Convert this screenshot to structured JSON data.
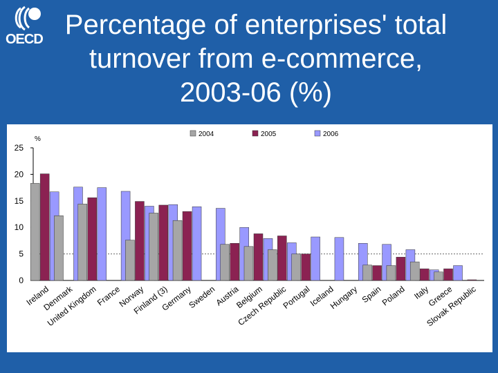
{
  "logo": {
    "text": "OECD"
  },
  "title": {
    "line1": "Percentage of enterprises' total",
    "line2": "turnover from e-commerce,",
    "line3": "2003-06 (%)"
  },
  "colors": {
    "background": "#1f5fa8",
    "panel": "#ffffff",
    "s2004": "#a6a6a6",
    "s2005": "#8b2252",
    "s2006": "#9999ff"
  },
  "chart_data": {
    "type": "bar",
    "title": "Percentage of enterprises' total turnover from e-commerce, 2003-06 (%)",
    "ylabel": "%",
    "xlabel": "",
    "ylim": [
      0,
      25
    ],
    "yticks": [
      0,
      5,
      10,
      15,
      20,
      25
    ],
    "grid": false,
    "reference_line": 5,
    "legend_position": "top",
    "categories": [
      "Ireland",
      "Denmark",
      "United Kingdom",
      "France",
      "Norway",
      "Finland (3)",
      "Germany",
      "Sweden",
      "Austria",
      "Belgium",
      "Czech Republic",
      "Portugal",
      "Iceland",
      "Hungary",
      "Spain",
      "Poland",
      "Italy",
      "Greece",
      "Slovak Republic"
    ],
    "series": [
      {
        "name": "2004",
        "values": [
          18.3,
          12.2,
          14.4,
          null,
          7.6,
          12.7,
          11.3,
          null,
          6.8,
          6.4,
          5.8,
          5.0,
          null,
          null,
          2.9,
          2.8,
          3.5,
          1.6,
          null
        ]
      },
      {
        "name": "2005",
        "values": [
          20.1,
          null,
          15.6,
          null,
          14.9,
          14.2,
          13.0,
          null,
          7.0,
          8.8,
          8.4,
          5.0,
          null,
          null,
          2.8,
          4.4,
          2.2,
          2.2,
          0.1
        ]
      },
      {
        "name": "2006",
        "values": [
          16.7,
          17.6,
          17.5,
          16.8,
          14.0,
          14.3,
          13.9,
          13.6,
          10.0,
          7.9,
          7.1,
          8.2,
          8.1,
          7.0,
          6.8,
          5.8,
          2.0,
          2.8,
          null
        ]
      }
    ]
  }
}
